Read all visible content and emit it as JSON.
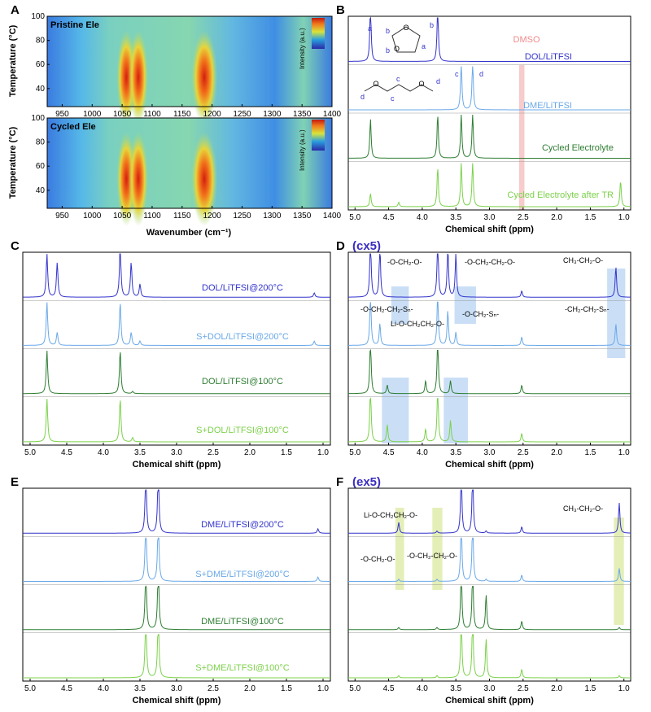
{
  "panels": {
    "A": {
      "label": "A",
      "top_title": "Pristine Ele",
      "bottom_title": "Cycled Ele",
      "xlabel": "Wavenumber (cm⁻¹)",
      "ylabel": "Temperature (°C)",
      "colorbar_label": "Intensity (a.u.)",
      "xticks": [
        "950",
        "1000",
        "1050",
        "1100",
        "1150",
        "1200",
        "1250",
        "1300",
        "1350",
        "1400"
      ],
      "yticks": [
        "100",
        "80",
        "60",
        "40"
      ],
      "ytick_values": [
        100,
        80,
        60,
        40
      ]
    },
    "B": {
      "label": "B",
      "xlabel": "Chemical shift (ppm)",
      "xticks": [
        "5.0",
        "4.5",
        "4.0",
        "3.5",
        "3.0",
        "2.5",
        "2.0",
        "1.5",
        "1.0"
      ],
      "traces": [
        "DOL/LiTFSI",
        "DME/LiTFSI",
        "Cycled Electrolyte",
        "Cycled Electrolyte after TR"
      ],
      "highlight_label": "DMSO",
      "peak_letters": [
        "a",
        "b",
        "c",
        "d"
      ],
      "dol_ring_letters": [
        "b",
        "b",
        "a"
      ],
      "dme_chain_letters": [
        "d",
        "c",
        "c",
        "d"
      ]
    },
    "C": {
      "label": "C",
      "xlabel": "Chemical shift (ppm)",
      "xticks": [
        "5.0",
        "4.5",
        "4.0",
        "3.5",
        "3.0",
        "2.5",
        "2.0",
        "1.5",
        "1.0"
      ],
      "traces": [
        "DOL/LiTFSI@200°C",
        "S+DOL/LiTFSI@200°C",
        "DOL/LiTFSI@100°C",
        "S+DOL/LiTFSI@100°C"
      ]
    },
    "D": {
      "label": "D",
      "multiplier": "(cx5)",
      "xlabel": "Chemical shift (ppm)",
      "xticks": [
        "5.0",
        "4.5",
        "4.0",
        "3.5",
        "3.0",
        "2.5",
        "2.0",
        "1.5",
        "1.0"
      ],
      "annotations": [
        "-O-CH₂-O-",
        "-O-CH₂-CH₂-O-",
        "CH₃-CH₂-O-",
        "-O-CH₂-CH₂-Sₙ-",
        "Li-O-CH₂CH₂-O-",
        "-O-CH₂-Sₙ-",
        "-CH₂-CH₂-Sₙ-"
      ]
    },
    "E": {
      "label": "E",
      "xlabel": "Chemical shift (ppm)",
      "xticks": [
        "5.0",
        "4.5",
        "4.0",
        "3.5",
        "3.0",
        "2.5",
        "2.0",
        "1.5",
        "1.0"
      ],
      "traces": [
        "DME/LiTFSI@200°C",
        "S+DME/LiTFSI@200°C",
        "DME/LiTFSI@100°C",
        "S+DME/LiTFSI@100°C"
      ]
    },
    "F": {
      "label": "F",
      "multiplier": "(ex5)",
      "xlabel": "Chemical shift (ppm)",
      "xticks": [
        "5.0",
        "4.5",
        "4.0",
        "3.5",
        "3.0",
        "2.5",
        "2.0",
        "1.5",
        "1.0"
      ],
      "annotations": [
        "Li-O-CH₂CH₂-O-",
        "CH₃-CH₂-O-",
        "-O-CH₂-O-",
        "-O-CH₂-CH₂-O-"
      ]
    }
  },
  "colors": {
    "trace_1": "#3333cc",
    "trace_2": "#6aa8e8",
    "trace_3": "#2e7d32",
    "trace_4": "#7cd14a",
    "dmso_band": "#f4b6b6",
    "blue_box": "#b4d2f2",
    "yellow_box": "#d8e89a",
    "multiplier": "#3a2dbf"
  },
  "chart_data": [
    {
      "panel": "A",
      "type": "heatmap",
      "title": "Pristine Ele",
      "xlabel": "Wavenumber (cm⁻¹)",
      "ylabel": "Temperature (°C)",
      "xlim": [
        925,
        1400
      ],
      "ylim": [
        25,
        100
      ],
      "hot_bands_cm-1": [
        1057,
        1077,
        1187
      ]
    },
    {
      "panel": "A",
      "type": "heatmap",
      "title": "Cycled Ele",
      "xlabel": "Wavenumber (cm⁻¹)",
      "ylabel": "Temperature (°C)",
      "xlim": [
        925,
        1400
      ],
      "ylim": [
        25,
        100
      ],
      "hot_bands_cm-1": [
        1057,
        1077,
        1187
      ]
    },
    {
      "panel": "B",
      "type": "line",
      "xlabel": "Chemical shift (ppm)",
      "xlim": [
        5.1,
        0.9
      ],
      "series": [
        {
          "name": "DOL/LiTFSI",
          "peaks_ppm": [
            4.77,
            3.77
          ]
        },
        {
          "name": "DME/LiTFSI",
          "peaks_ppm": [
            3.42,
            3.25
          ]
        },
        {
          "name": "Cycled Electrolyte",
          "peaks_ppm": [
            4.77,
            3.77,
            3.42,
            3.25
          ]
        },
        {
          "name": "Cycled Electrolyte after TR",
          "peaks_ppm": [
            4.77,
            4.35,
            3.77,
            3.42,
            3.25,
            1.05
          ]
        }
      ]
    },
    {
      "panel": "C",
      "type": "line",
      "xlabel": "Chemical shift (ppm)",
      "xlim": [
        5.1,
        0.9
      ],
      "series": [
        {
          "name": "DOL/LiTFSI@200°C",
          "peaks_ppm": [
            4.77,
            4.63,
            3.77,
            3.62,
            3.5,
            1.12
          ]
        },
        {
          "name": "S+DOL/LiTFSI@200°C",
          "peaks_ppm": [
            4.77,
            4.63,
            3.77,
            3.62,
            3.5,
            1.12
          ]
        },
        {
          "name": "DOL/LiTFSI@100°C",
          "peaks_ppm": [
            4.77,
            3.77,
            3.6
          ]
        },
        {
          "name": "S+DOL/LiTFSI@100°C",
          "peaks_ppm": [
            4.77,
            3.77,
            3.6
          ]
        }
      ]
    },
    {
      "panel": "D",
      "type": "line",
      "xlabel": "Chemical shift (ppm)",
      "xlim": [
        5.1,
        0.9
      ],
      "peaks_ppm": [
        4.77,
        4.63,
        3.77,
        3.62,
        3.5,
        2.52,
        1.12
      ]
    },
    {
      "panel": "E",
      "type": "line",
      "xlabel": "Chemical shift (ppm)",
      "xlim": [
        5.1,
        0.9
      ],
      "series": [
        {
          "name": "DME/LiTFSI@200°C",
          "peaks_ppm": [
            3.42,
            3.25,
            1.07
          ]
        },
        {
          "name": "S+DME/LiTFSI@200°C",
          "peaks_ppm": [
            3.42,
            3.25,
            1.07
          ]
        },
        {
          "name": "DME/LiTFSI@100°C",
          "peaks_ppm": [
            3.42,
            3.25
          ]
        },
        {
          "name": "S+DME/LiTFSI@100°C",
          "peaks_ppm": [
            3.42,
            3.25
          ]
        }
      ]
    },
    {
      "panel": "F",
      "type": "line",
      "xlabel": "Chemical shift (ppm)",
      "xlim": [
        5.1,
        0.9
      ],
      "peaks_ppm": [
        4.35,
        3.78,
        3.42,
        3.25,
        3.05,
        2.52,
        1.07
      ]
    }
  ]
}
